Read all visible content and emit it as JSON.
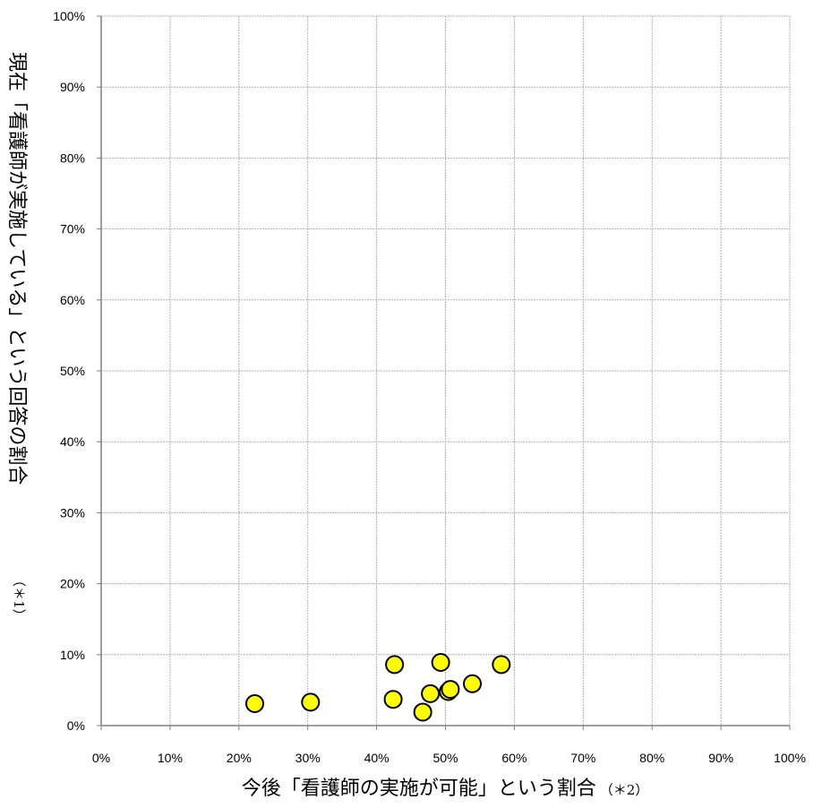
{
  "chart_data": {
    "type": "scatter",
    "xlabel": "今後「看護師の実施が可能」という割合",
    "xlabel_note": "（＊2）",
    "ylabel": "現在「看護師が実施している」という回答の割合",
    "ylabel_note": "（＊1）",
    "xlim": [
      0,
      100
    ],
    "ylim": [
      0,
      100
    ],
    "x_ticks": [
      "0%",
      "10%",
      "20%",
      "30%",
      "40%",
      "50%",
      "60%",
      "70%",
      "80%",
      "90%",
      "100%"
    ],
    "y_ticks": [
      "0%",
      "10%",
      "20%",
      "30%",
      "40%",
      "50%",
      "60%",
      "70%",
      "80%",
      "90%",
      "100%"
    ],
    "grid": true,
    "marker_color": "#ffff00",
    "marker_edge_color": "#000000",
    "points": [
      {
        "x": 22.3,
        "y": 3.1
      },
      {
        "x": 30.4,
        "y": 3.3
      },
      {
        "x": 42.4,
        "y": 3.7
      },
      {
        "x": 42.6,
        "y": 8.6
      },
      {
        "x": 46.7,
        "y": 1.9
      },
      {
        "x": 47.8,
        "y": 4.5
      },
      {
        "x": 49.3,
        "y": 8.9
      },
      {
        "x": 50.4,
        "y": 4.8
      },
      {
        "x": 50.7,
        "y": 5.1
      },
      {
        "x": 53.9,
        "y": 5.9
      },
      {
        "x": 58.1,
        "y": 8.6
      }
    ]
  }
}
